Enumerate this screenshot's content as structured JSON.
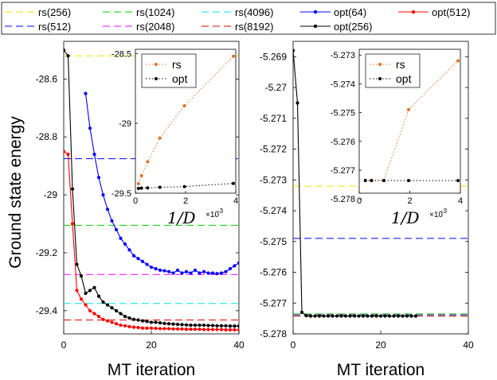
{
  "chart_data": [
    {
      "type": "line",
      "panel": "left",
      "xlabel": "MT iteration",
      "ylabel": "Ground state energy",
      "xlim": [
        0,
        40
      ],
      "ylim": [
        -29.48,
        -28.47
      ],
      "x_ticks": [
        "0",
        "20",
        "40"
      ],
      "y_ticks": [
        "-28.6",
        "-28.8",
        "-29",
        "-29.2",
        "-29.4"
      ],
      "reference_lines": [
        {
          "name": "rs(256)",
          "y": -28.52,
          "color": "#e6e600"
        },
        {
          "name": "rs(512)",
          "y": -28.875,
          "color": "#0000ff"
        },
        {
          "name": "rs(1024)",
          "y": -29.105,
          "color": "#00cc00"
        },
        {
          "name": "rs(2048)",
          "y": -29.275,
          "color": "#ff00ff"
        },
        {
          "name": "rs(4096)",
          "y": -29.375,
          "color": "#00e6e6"
        },
        {
          "name": "rs(8192)",
          "y": -29.432,
          "color": "#e60000"
        }
      ],
      "series": [
        {
          "name": "opt(64)",
          "color": "#0000ff",
          "x": [
            5,
            6,
            7,
            8,
            9,
            10,
            11,
            12,
            13,
            14,
            15,
            16,
            17,
            18,
            19,
            20,
            21,
            22,
            23,
            24,
            25,
            26,
            27,
            28,
            29,
            30,
            31,
            32,
            33,
            34,
            35,
            36,
            37,
            38,
            39,
            40
          ],
          "values": [
            -28.65,
            -28.77,
            -28.86,
            -28.94,
            -29.0,
            -29.05,
            -29.09,
            -29.12,
            -29.15,
            -29.17,
            -29.19,
            -29.21,
            -29.22,
            -29.23,
            -29.24,
            -29.25,
            -29.255,
            -29.26,
            -29.262,
            -29.265,
            -29.27,
            -29.26,
            -29.27,
            -29.265,
            -29.27,
            -29.26,
            -29.27,
            -29.265,
            -29.27,
            -29.27,
            -29.272,
            -29.27,
            -29.265,
            -29.255,
            -29.245,
            -29.235
          ]
        },
        {
          "name": "opt(256)",
          "color": "#000000",
          "x": [
            0,
            1,
            2,
            3,
            4,
            5,
            6,
            7,
            8,
            9,
            10,
            11,
            12,
            13,
            14,
            15,
            16,
            17,
            18,
            19,
            20,
            21,
            22,
            23,
            24,
            25,
            26,
            27,
            28,
            29,
            30,
            31,
            32,
            33,
            34,
            35,
            36,
            37,
            38,
            39,
            40
          ],
          "values": [
            -28.5,
            -28.52,
            -28.98,
            -29.24,
            -29.28,
            -29.34,
            -29.33,
            -29.32,
            -29.35,
            -29.37,
            -29.38,
            -29.39,
            -29.4,
            -29.41,
            -29.42,
            -29.425,
            -29.43,
            -29.432,
            -29.435,
            -29.437,
            -29.44,
            -29.44,
            -29.442,
            -29.444,
            -29.445,
            -29.446,
            -29.447,
            -29.448,
            -29.449,
            -29.45,
            -29.45,
            -29.45,
            -29.45,
            -29.451,
            -29.451,
            -29.452,
            -29.452,
            -29.452,
            -29.453,
            -29.453,
            -29.453
          ]
        },
        {
          "name": "opt(512)",
          "color": "#ff0000",
          "x": [
            0,
            1,
            2,
            3,
            4,
            5,
            6,
            7,
            8,
            9,
            10,
            11,
            12,
            13,
            14,
            15,
            16,
            17,
            18,
            19,
            20,
            21,
            22,
            23,
            24,
            25,
            26,
            27,
            28,
            29,
            30,
            31,
            32,
            33,
            34,
            35,
            36,
            37,
            38,
            39,
            40
          ],
          "values": [
            -28.85,
            -28.86,
            -29.1,
            -29.33,
            -29.36,
            -29.38,
            -29.4,
            -29.41,
            -29.42,
            -29.43,
            -29.435,
            -29.44,
            -29.445,
            -29.45,
            -29.452,
            -29.455,
            -29.457,
            -29.458,
            -29.46,
            -29.46,
            -29.46,
            -29.461,
            -29.462,
            -29.462,
            -29.462,
            -29.463,
            -29.463,
            -29.463,
            -29.464,
            -29.464,
            -29.464,
            -29.464,
            -29.465,
            -29.465,
            -29.465,
            -29.465,
            -29.465,
            -29.466,
            -29.466,
            -29.466,
            -29.466
          ]
        }
      ],
      "legend": {
        "placement": "top",
        "entries": [
          {
            "label": "rs(256)",
            "color": "#e6e600",
            "style": "dashed"
          },
          {
            "label": "rs(1024)",
            "color": "#00cc00",
            "style": "dashed"
          },
          {
            "label": "rs(4096)",
            "color": "#00e6e6",
            "style": "dashed"
          },
          {
            "label": "opt(64)",
            "color": "#0000ff",
            "style": "solid-marker"
          },
          {
            "label": "opt(512)",
            "color": "#ff0000",
            "style": "solid-marker"
          },
          {
            "label": "rs(512)",
            "color": "#0000ff",
            "style": "dashed"
          },
          {
            "label": "rs(2048)",
            "color": "#ff00ff",
            "style": "dashed"
          },
          {
            "label": "rs(8192)",
            "color": "#e60000",
            "style": "dashed"
          },
          {
            "label": "opt(256)",
            "color": "#000000",
            "style": "solid-marker"
          }
        ]
      }
    },
    {
      "type": "scatter",
      "panel": "left-inset",
      "xlabel": "1/D",
      "x_exponent": "×10",
      "x_exponent_power": "-3",
      "xlim": [
        0,
        4
      ],
      "ylim": [
        -29.5,
        -28.47
      ],
      "x_ticks": [
        "0",
        "2",
        "4"
      ],
      "y_ticks": [
        "-28.5",
        "-29",
        "-29.5"
      ],
      "series": [
        {
          "name": "rs",
          "color": "#e07020",
          "style": "dotted",
          "x": [
            0.122,
            0.244,
            0.488,
            0.977,
            1.953,
            3.906
          ],
          "values": [
            -29.432,
            -29.375,
            -29.275,
            -29.105,
            -28.875,
            -28.52
          ]
        },
        {
          "name": "opt",
          "color": "#000000",
          "style": "dotted",
          "x": [
            0.122,
            0.244,
            0.488,
            0.977,
            1.953,
            3.906
          ],
          "values": [
            -29.466,
            -29.464,
            -29.462,
            -29.458,
            -29.453,
            -29.43
          ]
        }
      ],
      "legend": {
        "placement": "top-right",
        "entries": [
          {
            "label": "rs"
          },
          {
            "label": "opt"
          }
        ]
      }
    },
    {
      "type": "line",
      "panel": "right",
      "xlabel": "MT iteration",
      "xlim": [
        0,
        40
      ],
      "ylim": [
        -5.278,
        -5.2685
      ],
      "x_ticks": [
        "0",
        "20",
        "40"
      ],
      "y_ticks": [
        "-5.269",
        "-5.27",
        "-5.271",
        "-5.272",
        "-5.273",
        "-5.274",
        "-5.275",
        "-5.276",
        "-5.277",
        "-5.278"
      ],
      "reference_lines": [
        {
          "name": "rs(256)",
          "y": -5.2732,
          "color": "#e6e600"
        },
        {
          "name": "rs(512)",
          "y": -5.2749,
          "color": "#0000ff"
        },
        {
          "name": "rs(1024)",
          "y": -5.27735,
          "color": "#00cc00"
        },
        {
          "name": "rs(2048)",
          "y": -5.27738,
          "color": "#ff00ff"
        },
        {
          "name": "rs(4096)",
          "y": -5.2774,
          "color": "#00e6e6"
        },
        {
          "name": "rs(8192)",
          "y": -5.27742,
          "color": "#e60000"
        }
      ],
      "series": [
        {
          "name": "opt(256)",
          "color": "#000000",
          "x": [
            0,
            1,
            2,
            3,
            4,
            5,
            6,
            7,
            8,
            9,
            10,
            11,
            12,
            13,
            14,
            15,
            16,
            17,
            18,
            19,
            20,
            21,
            22,
            23,
            24,
            25,
            26,
            27,
            28
          ],
          "values": [
            -5.2688,
            -5.2705,
            -5.2773,
            -5.27741,
            -5.27742,
            -5.27742,
            -5.27742,
            -5.27742,
            -5.27742,
            -5.27742,
            -5.27742,
            -5.27742,
            -5.27742,
            -5.27742,
            -5.27742,
            -5.27742,
            -5.27742,
            -5.27742,
            -5.27742,
            -5.27742,
            -5.27742,
            -5.27742,
            -5.27742,
            -5.27742,
            -5.27742,
            -5.27742,
            -5.27742,
            -5.27742,
            -5.27742
          ]
        }
      ]
    },
    {
      "type": "scatter",
      "panel": "right-inset",
      "xlabel": "1/D",
      "x_exponent": "×10",
      "x_exponent_power": "-3",
      "xlim": [
        0,
        4
      ],
      "ylim": [
        -5.2778,
        -5.2728
      ],
      "x_ticks": [
        "0",
        "2",
        "4"
      ],
      "y_ticks": [
        "-5.273",
        "-5.274",
        "-5.275",
        "-5.276",
        "-5.277",
        "-5.278"
      ],
      "series": [
        {
          "name": "rs",
          "color": "#e07020",
          "style": "dotted",
          "x": [
            0.244,
            0.488,
            0.977,
            1.953,
            3.906
          ],
          "values": [
            -5.27735,
            -5.27735,
            -5.27735,
            -5.2749,
            -5.2732
          ]
        },
        {
          "name": "opt",
          "color": "#000000",
          "style": "dotted",
          "x": [
            0.244,
            0.488,
            0.977,
            1.953,
            3.906
          ],
          "values": [
            -5.27736,
            -5.27736,
            -5.27736,
            -5.27736,
            -5.27736
          ]
        }
      ],
      "legend": {
        "placement": "top-right",
        "entries": [
          {
            "label": "rs"
          },
          {
            "label": "opt"
          }
        ]
      }
    }
  ]
}
